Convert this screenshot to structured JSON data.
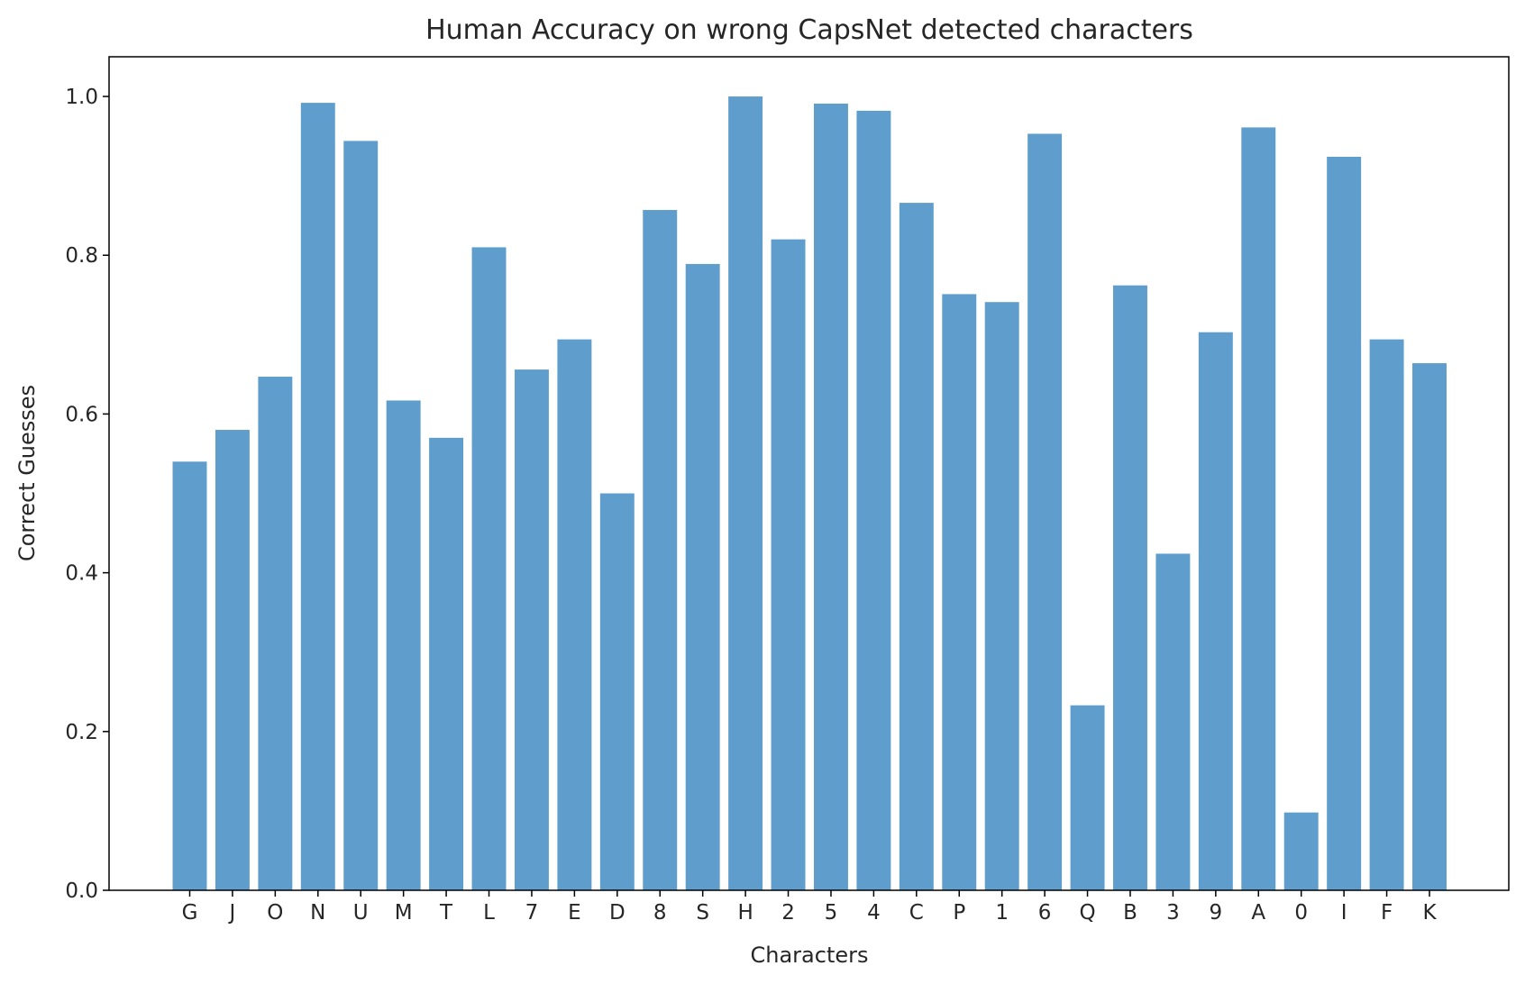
{
  "chart_data": {
    "type": "bar",
    "title": "Human Accuracy on wrong CapsNet detected characters",
    "xlabel": "Characters",
    "ylabel": "Correct Guesses",
    "ylim": [
      0,
      1.05
    ],
    "yticks": [
      "0.0",
      "0.2",
      "0.4",
      "0.6",
      "0.8",
      "1.0"
    ],
    "grid": false,
    "categories": [
      "G",
      "J",
      "O",
      "N",
      "U",
      "M",
      "T",
      "L",
      "7",
      "E",
      "D",
      "8",
      "S",
      "H",
      "2",
      "5",
      "4",
      "C",
      "P",
      "1",
      "6",
      "Q",
      "B",
      "3",
      "9",
      "A",
      "0",
      "I",
      "F",
      "K"
    ],
    "values": [
      0.54,
      0.58,
      0.647,
      0.992,
      0.944,
      0.617,
      0.57,
      0.81,
      0.656,
      0.694,
      0.5,
      0.857,
      0.789,
      1.0,
      0.82,
      0.991,
      0.982,
      0.866,
      0.751,
      0.741,
      0.953,
      0.233,
      0.762,
      0.424,
      0.703,
      0.961,
      0.098,
      0.924,
      0.694,
      0.664
    ],
    "bar_color": "#5f9ecc"
  }
}
